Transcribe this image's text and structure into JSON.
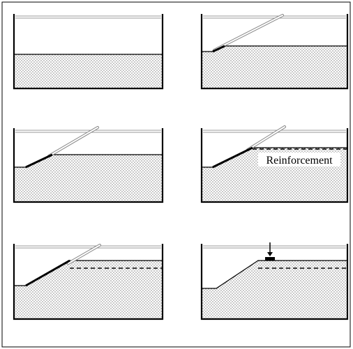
{
  "labels": {
    "reinforcement": "Reinforcement"
  }
}
